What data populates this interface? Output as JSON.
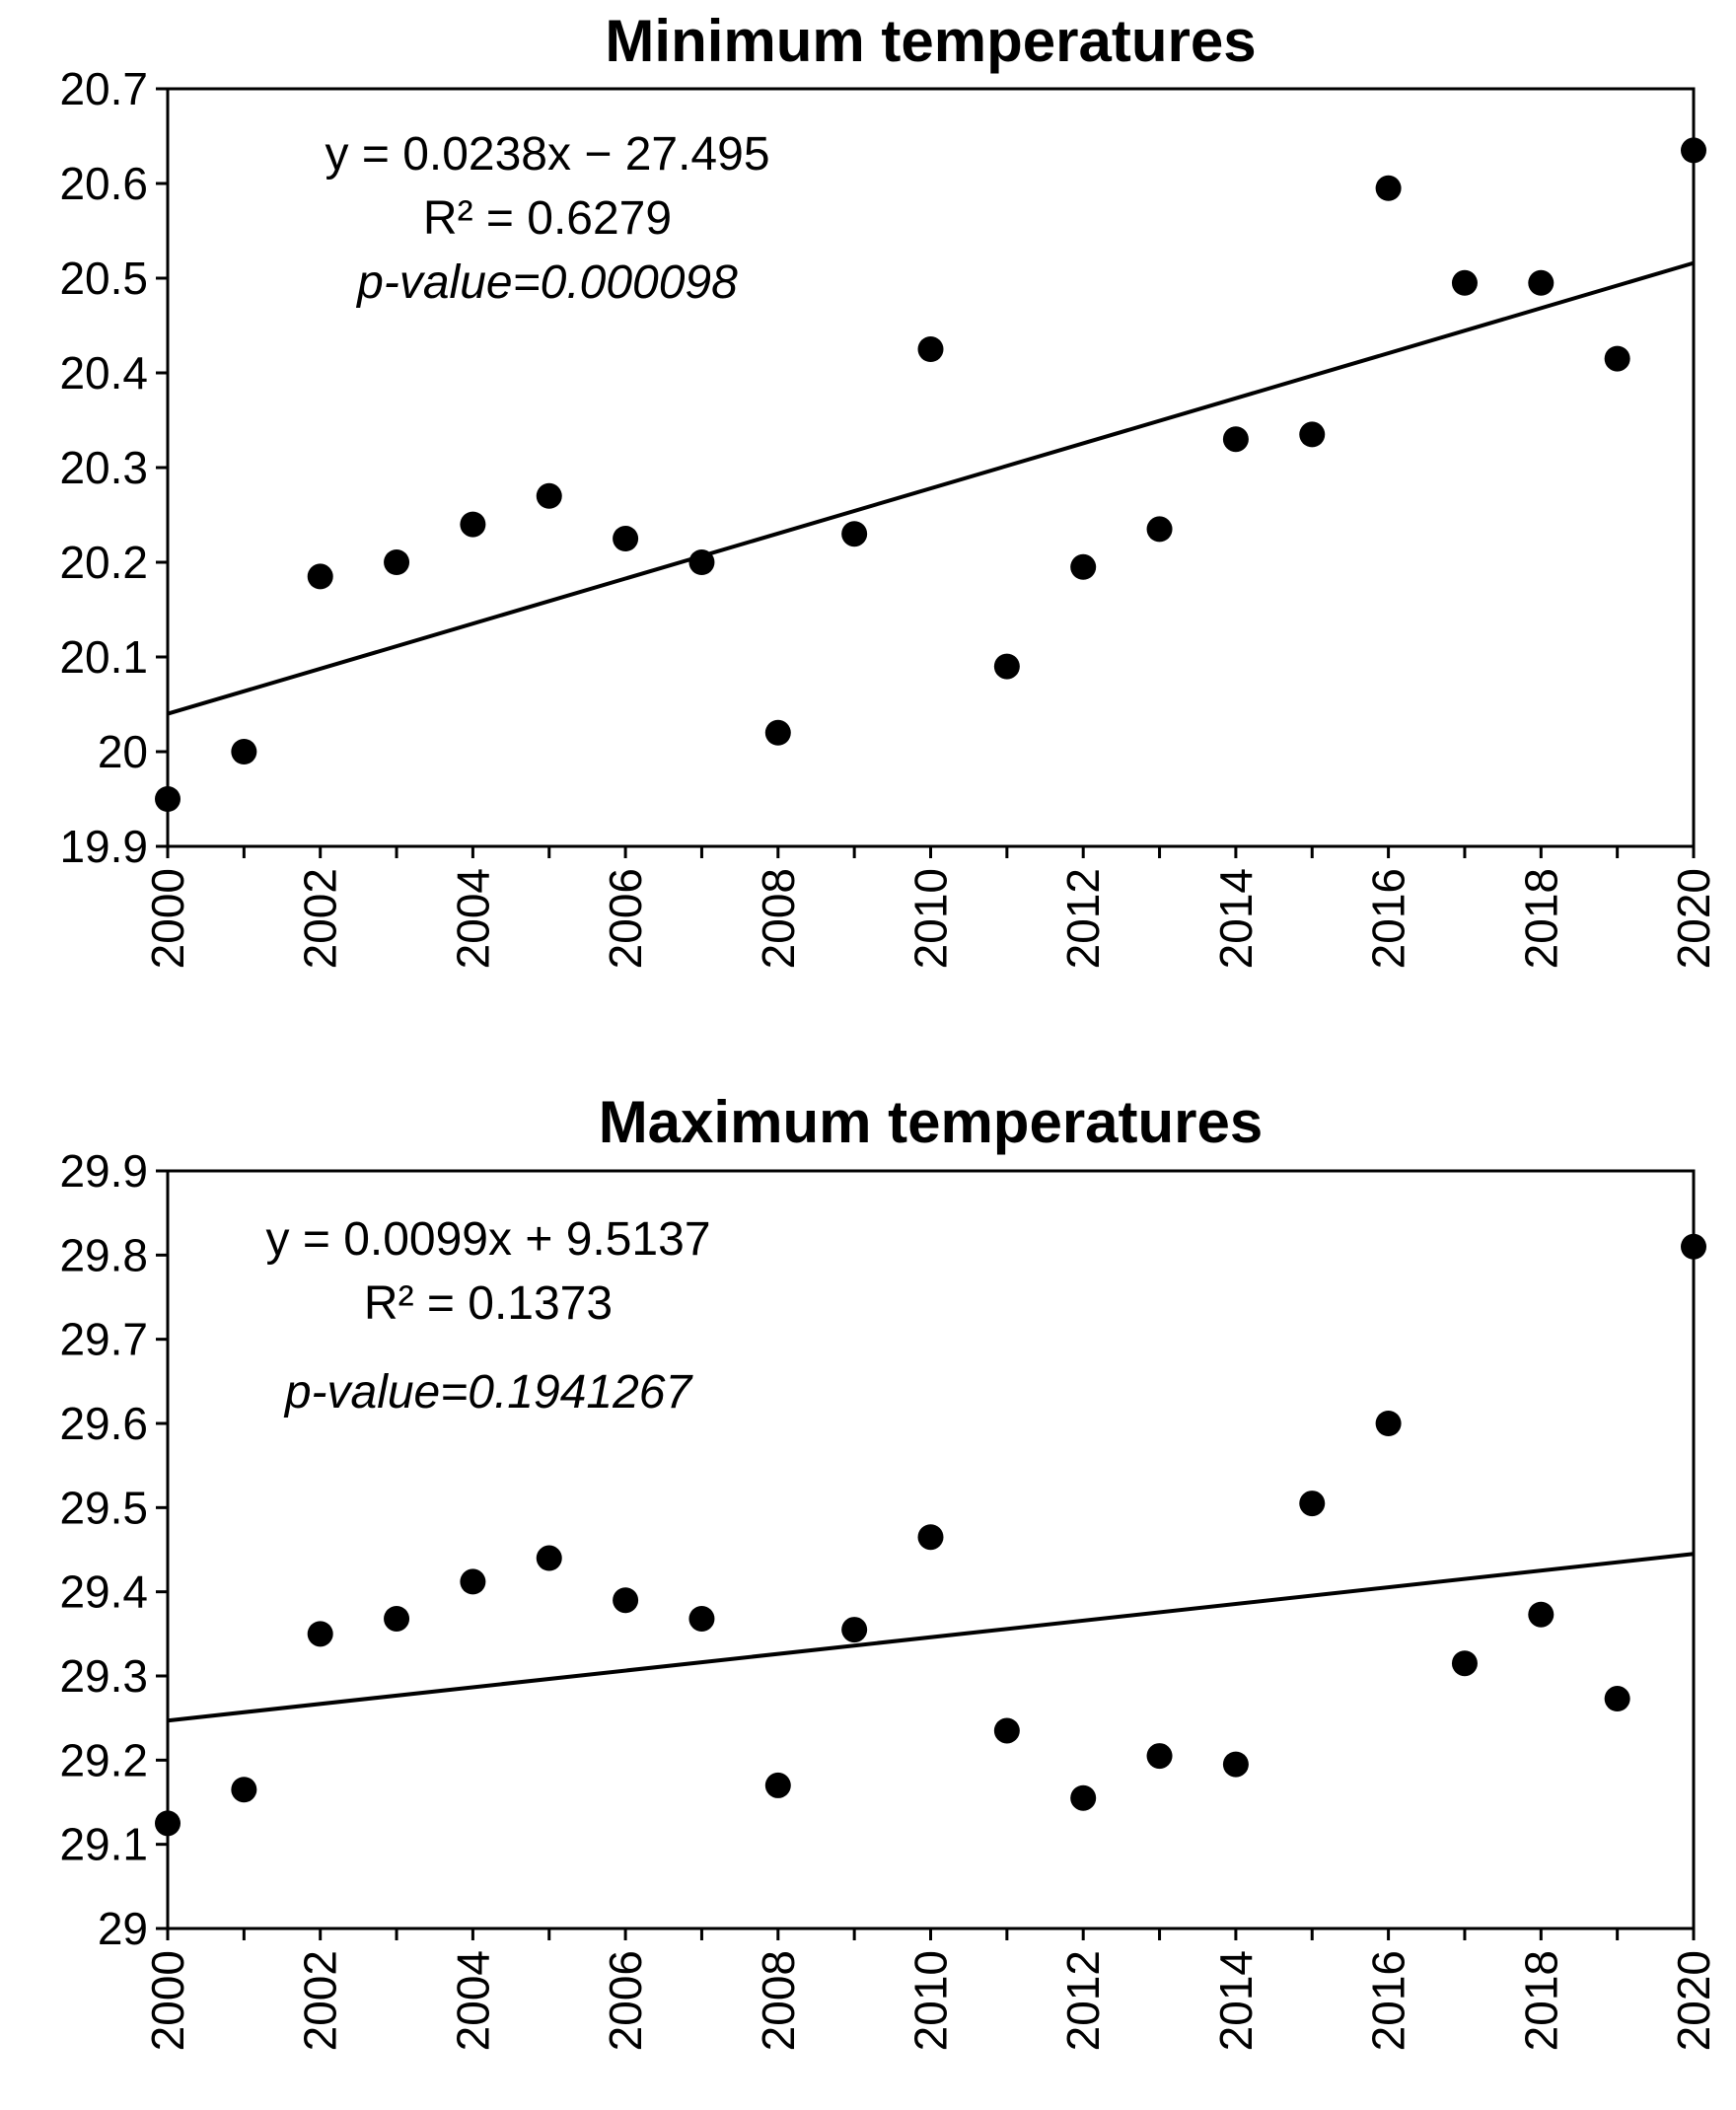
{
  "chart_data": [
    {
      "type": "scatter",
      "title": "Minimum temperatures",
      "xlabel": "",
      "ylabel": "",
      "xlim": [
        2000,
        2020
      ],
      "ylim": [
        19.9,
        20.7
      ],
      "x_ticks": [
        "2000",
        "2002",
        "2004",
        "2006",
        "2008",
        "2010",
        "2012",
        "2014",
        "2016",
        "2018",
        "2020"
      ],
      "y_ticks": [
        "20.7",
        "20.6",
        "20.5",
        "20.4",
        "20.3",
        "20.2",
        "20.1",
        "20",
        "19.9"
      ],
      "series": [
        {
          "name": "Minimum temperatures",
          "x": [
            2000,
            2001,
            2002,
            2003,
            2004,
            2005,
            2006,
            2007,
            2008,
            2009,
            2010,
            2011,
            2012,
            2013,
            2014,
            2015,
            2016,
            2017,
            2018,
            2019,
            2020
          ],
          "y": [
            19.95,
            20.0,
            20.185,
            20.2,
            20.24,
            20.27,
            20.225,
            20.2,
            20.02,
            20.23,
            20.425,
            20.09,
            20.195,
            20.235,
            20.33,
            20.335,
            20.595,
            20.495,
            20.495,
            20.415,
            20.635
          ]
        }
      ],
      "trendline": {
        "x": [
          2000,
          2020
        ],
        "y": [
          20.04,
          20.516
        ]
      },
      "annotations": {
        "equation": "y = 0.0238x − 27.495",
        "r_squared": "R² = 0.6279",
        "p_value": "p-value=0.000098"
      },
      "grid": false
    },
    {
      "type": "scatter",
      "title": "Maximum temperatures",
      "xlabel": "",
      "ylabel": "",
      "xlim": [
        2000,
        2020
      ],
      "ylim": [
        29.0,
        29.9
      ],
      "x_ticks": [
        "2000",
        "2002",
        "2004",
        "2006",
        "2008",
        "2010",
        "2012",
        "2014",
        "2016",
        "2018",
        "2020"
      ],
      "y_ticks": [
        "29.9",
        "29.8",
        "29.7",
        "29.6",
        "29.5",
        "29.4",
        "29.3",
        "29.2",
        "29.1",
        "29"
      ],
      "series": [
        {
          "name": "Maximum temperatures",
          "x": [
            2000,
            2001,
            2002,
            2003,
            2004,
            2005,
            2006,
            2007,
            2008,
            2009,
            2010,
            2011,
            2012,
            2013,
            2014,
            2015,
            2016,
            2017,
            2018,
            2019,
            2020
          ],
          "y": [
            29.125,
            29.165,
            29.35,
            29.368,
            29.412,
            29.44,
            29.39,
            29.368,
            29.17,
            29.355,
            29.465,
            29.235,
            29.155,
            29.205,
            29.195,
            29.505,
            29.6,
            29.315,
            29.373,
            29.273,
            29.81
          ]
        }
      ],
      "trendline": {
        "x": [
          2000,
          2020
        ],
        "y": [
          29.247,
          29.445
        ]
      },
      "annotations": {
        "equation": "y = 0.0099x + 9.5137",
        "r_squared": "R² = 0.1373",
        "p_value": "p-value=0.1941267"
      },
      "grid": false
    }
  ]
}
